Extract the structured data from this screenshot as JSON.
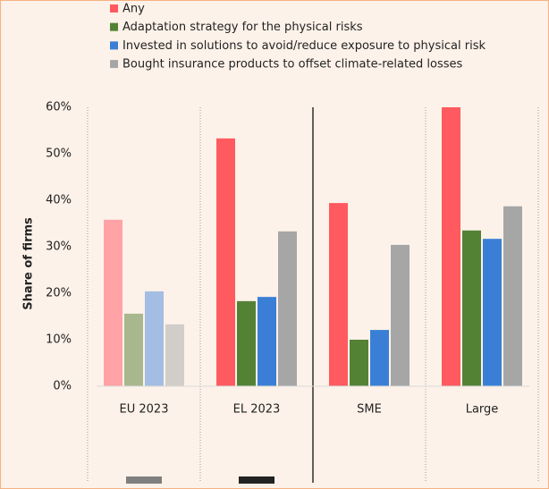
{
  "chart_data": {
    "type": "bar",
    "y_label": "Share of firms",
    "categories": [
      "EU 2023",
      "EL 2023",
      "SME",
      "Large"
    ],
    "series": [
      {
        "name": "Any",
        "color": "#ff5a5f",
        "colors": [
          "#ffa3a6",
          "#ff5a5f",
          "#ff5a5f",
          "#ff5a5f"
        ],
        "values": [
          35.8,
          53.3,
          39.4,
          60
        ]
      },
      {
        "name": "Adaptation strategy for the physical risks",
        "color": "#548235",
        "colors": [
          "#a9b78f",
          "#548235",
          "#548235",
          "#548235"
        ],
        "values": [
          15.6,
          18.3,
          10,
          33.5
        ]
      },
      {
        "name": "Invested in solutions to avoid/reduce exposure to physical risk",
        "color": "#3a7fd5",
        "colors": [
          "#a3bde3",
          "#3a7fd5",
          "#3a7fd5",
          "#3a7fd5"
        ],
        "values": [
          20.4,
          19.2,
          12.1,
          31.7
        ]
      },
      {
        "name": "Bought insurance products to offset climate-related losses",
        "color": "#a6a6a6",
        "colors": [
          "#d1cdc9",
          "#a6a6a6",
          "#a6a6a6",
          "#a6a6a6"
        ],
        "values": [
          13.3,
          33.3,
          30.4,
          38.7
        ]
      }
    ],
    "ylim": [
      0,
      60
    ],
    "yticks": [
      {
        "value": 0,
        "label": "0%"
      },
      {
        "value": 10,
        "label": "10%"
      },
      {
        "value": 20,
        "label": "20%"
      },
      {
        "value": 30,
        "label": "30%"
      },
      {
        "value": 40,
        "label": "40%"
      },
      {
        "value": 50,
        "label": "50%"
      },
      {
        "value": 60,
        "label": "60%"
      }
    ],
    "grid": false
  }
}
